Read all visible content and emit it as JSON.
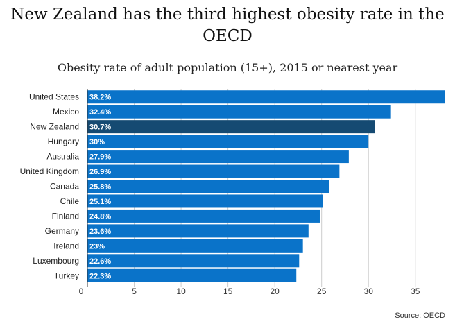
{
  "title": "New Zealand has the third highest obesity rate in the OECD",
  "subtitle": "Obesity rate of adult population (15+), 2015 or nearest year",
  "source": "Source: OECD",
  "colors": {
    "bar": "#0a73c9",
    "highlight": "#154a72",
    "grid": "#cccccc"
  },
  "chart_data": {
    "type": "bar",
    "orientation": "horizontal",
    "categories": [
      "United States",
      "Mexico",
      "New Zealand",
      "Hungary",
      "Australia",
      "United Kingdom",
      "Canada",
      "Chile",
      "Finland",
      "Germany",
      "Ireland",
      "Luxembourg",
      "Turkey"
    ],
    "values": [
      38.2,
      32.4,
      30.7,
      30,
      27.9,
      26.9,
      25.8,
      25.1,
      24.8,
      23.6,
      23,
      22.6,
      22.3
    ],
    "value_labels": [
      "38.2%",
      "32.4%",
      "30.7%",
      "30%",
      "27.9%",
      "26.9%",
      "25.8%",
      "25.1%",
      "24.8%",
      "23.6%",
      "23%",
      "22.6%",
      "22.3%"
    ],
    "highlight": "New Zealand",
    "xticks": [
      0,
      5,
      10,
      15,
      20,
      25,
      30,
      35
    ],
    "xlim": [
      0,
      38.2
    ],
    "grid": true
  }
}
